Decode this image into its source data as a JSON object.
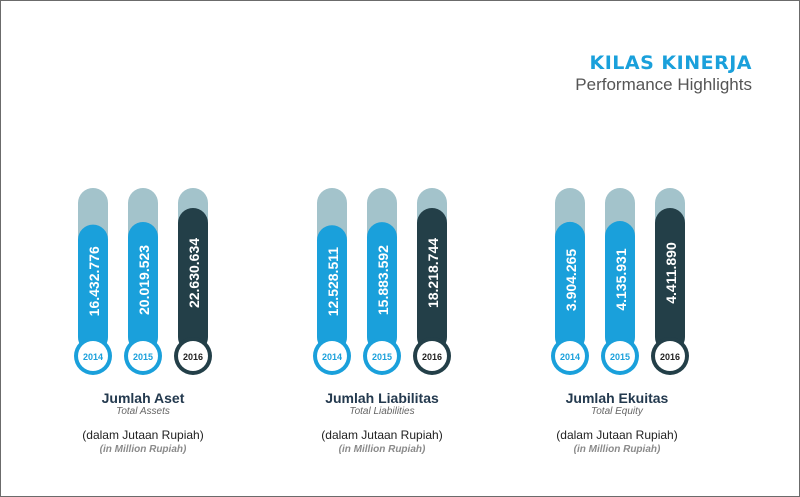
{
  "header": {
    "title": "KILAS KINERJA",
    "subtitle": "Performance Highlights"
  },
  "colors": {
    "accent_blue": "#1aa0db",
    "dark_teal": "#233f48",
    "track": "#a3c3cb"
  },
  "chart_data": [
    {
      "type": "bar",
      "title": "Jumlah Aset",
      "subtitle": "Total Assets",
      "unit": "(dalam Jutaan Rupiah)",
      "unit_en": "(in Million Rupiah)",
      "categories": [
        "2014",
        "2015",
        "2016"
      ],
      "values": [
        16432776,
        20019523,
        22630634
      ],
      "value_labels": [
        "16.432.776",
        "20.019.523",
        "22.630.634"
      ],
      "bar_colors": [
        "#1aa0db",
        "#1aa0db",
        "#233f48"
      ]
    },
    {
      "type": "bar",
      "title": "Jumlah Liabilitas",
      "subtitle": "Total Liabilities",
      "unit": "(dalam Jutaan Rupiah)",
      "unit_en": "(in Million Rupiah)",
      "categories": [
        "2014",
        "2015",
        "2016"
      ],
      "values": [
        12528511,
        15883592,
        18218744
      ],
      "value_labels": [
        "12.528.511",
        "15.883.592",
        "18.218.744"
      ],
      "bar_colors": [
        "#1aa0db",
        "#1aa0db",
        "#233f48"
      ]
    },
    {
      "type": "bar",
      "title": "Jumlah Ekuitas",
      "subtitle": "Total Equity",
      "unit": "(dalam Jutaan Rupiah)",
      "unit_en": "(in Million Rupiah)",
      "categories": [
        "2014",
        "2015",
        "2016"
      ],
      "values": [
        3904265,
        4135931,
        4411890
      ],
      "value_labels": [
        "3.904.265",
        "4.135.931",
        "4.411.890"
      ],
      "bar_colors": [
        "#1aa0db",
        "#1aa0db",
        "#233f48"
      ]
    }
  ]
}
